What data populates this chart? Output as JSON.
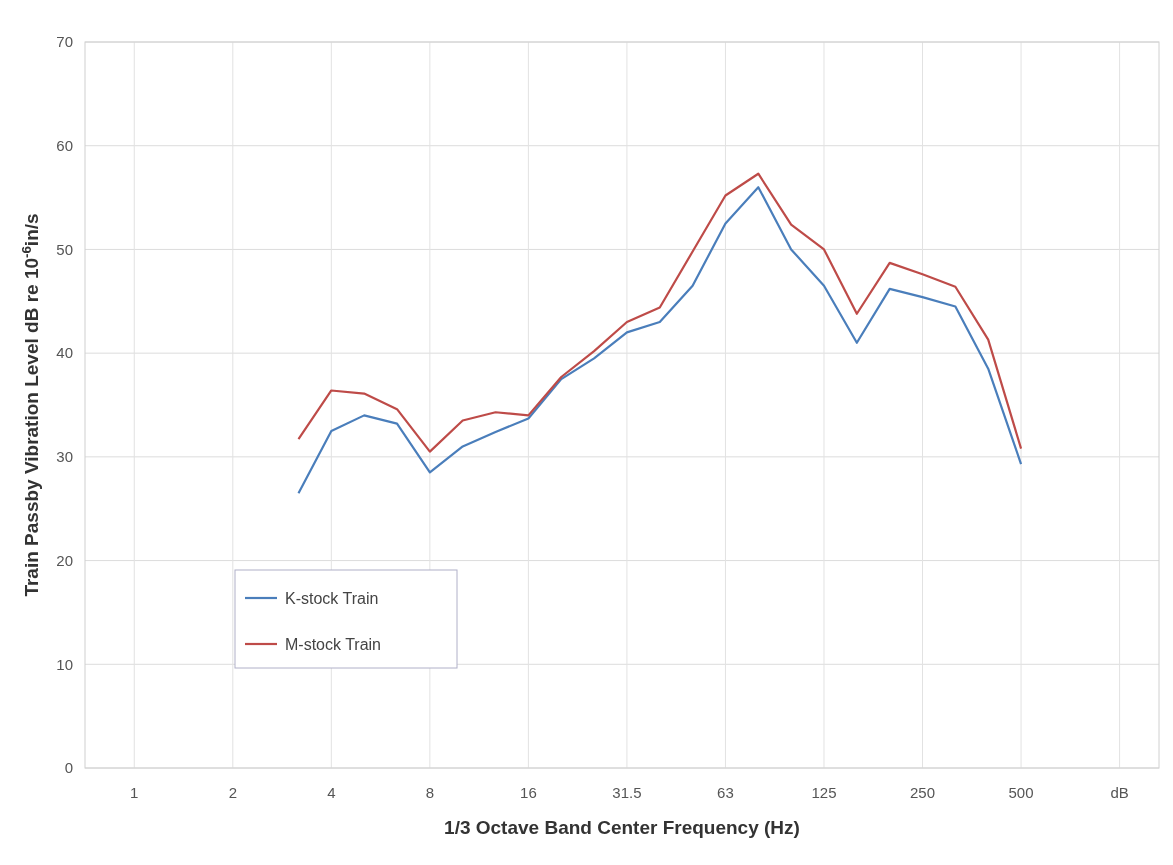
{
  "chart_data": {
    "type": "line",
    "xlabel": "1/3 Octave Band Center Frequency (Hz)",
    "ylabel": "Train Passby Vibration Level dB re 10$^{-6}$in/s",
    "categories": [
      "1",
      null,
      null,
      "2",
      null,
      null,
      "4",
      null,
      null,
      "8",
      null,
      null,
      "16",
      null,
      null,
      "31.5",
      null,
      null,
      "63",
      null,
      null,
      "125",
      null,
      null,
      "250",
      null,
      null,
      "500",
      null,
      null,
      "dB"
    ],
    "series": [
      {
        "name": "K-stock Train",
        "color": "#4a7ebb",
        "values": [
          null,
          null,
          null,
          null,
          null,
          26.5,
          32.5,
          34,
          33.2,
          28.5,
          31,
          32.4,
          33.7,
          37.5,
          39.5,
          42,
          43,
          46.5,
          52.5,
          56,
          50,
          46.5,
          41,
          46.2,
          45.4,
          44.5,
          38.5,
          29.3,
          null,
          null,
          null
        ]
      },
      {
        "name": "M-stock Train",
        "color": "#be4b48",
        "values": [
          null,
          null,
          null,
          null,
          null,
          31.7,
          36.4,
          36.1,
          34.6,
          30.5,
          33.5,
          34.3,
          34,
          37.7,
          40.2,
          43,
          44.4,
          49.8,
          55.2,
          57.3,
          52.4,
          50,
          43.8,
          48.7,
          47.6,
          46.4,
          41.3,
          30.8,
          null,
          null,
          null
        ]
      }
    ],
    "ylim": [
      0,
      70
    ],
    "yticks": [
      0,
      10,
      20,
      30,
      40,
      50,
      60,
      70
    ],
    "grid": true,
    "legend": "bottom left",
    "line_style": "solid",
    "marker": "none"
  }
}
